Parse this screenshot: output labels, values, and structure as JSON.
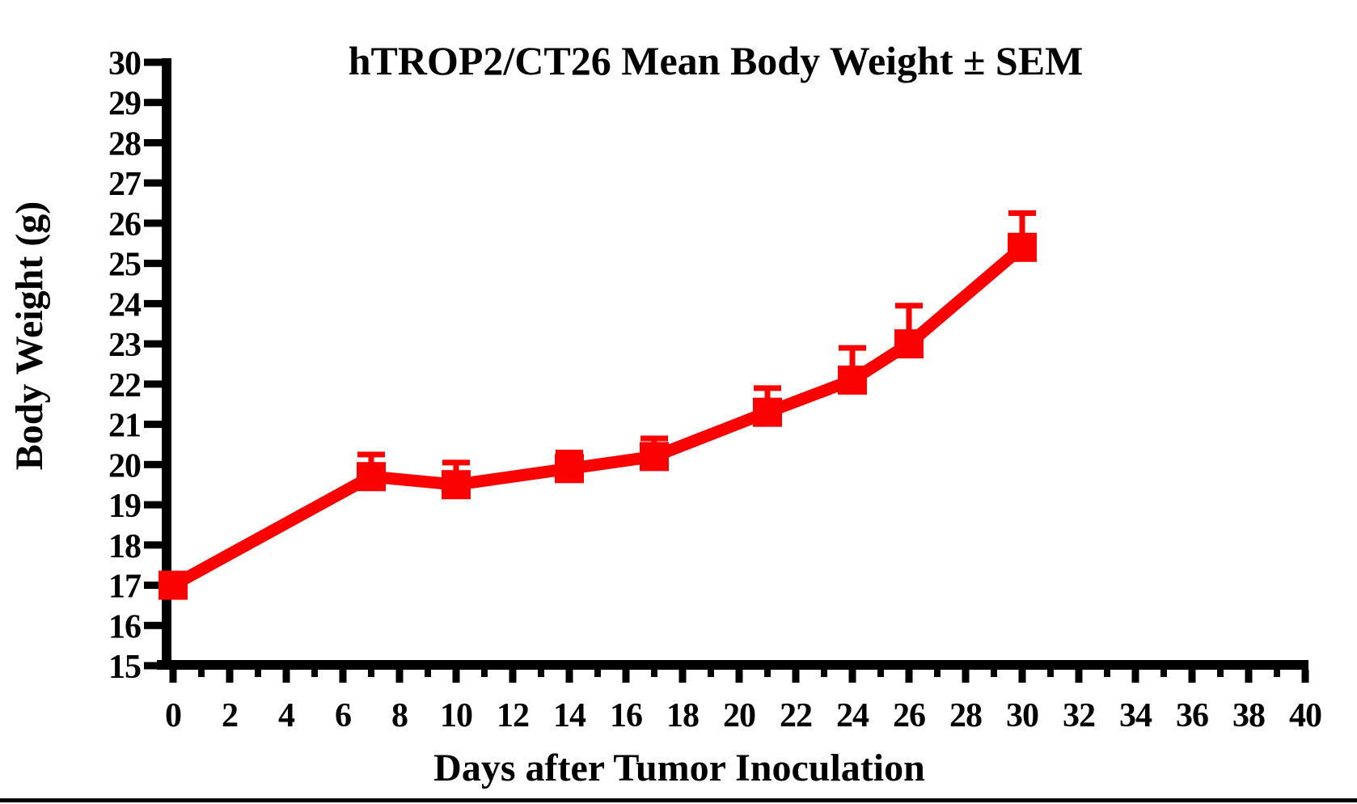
{
  "figure": {
    "background": "#ffffff",
    "footer_rule_color": "#000000",
    "axis_color": "#000000"
  },
  "chart_data": {
    "type": "line",
    "title": "hTROP2/CT26 Mean Body Weight ± SEM",
    "xlabel": "Days after Tumor Inoculation",
    "ylabel": "Body Weight (g)",
    "xlim": [
      0,
      40
    ],
    "ylim": [
      15,
      30
    ],
    "x_major_step": 2,
    "x_minor_step": 1,
    "y_step": 1,
    "grid": false,
    "legend": "none",
    "x_tick_labels": [
      "0",
      "2",
      "4",
      "6",
      "8",
      "10",
      "12",
      "14",
      "16",
      "18",
      "20",
      "22",
      "24",
      "26",
      "28",
      "30",
      "32",
      "34",
      "36",
      "38",
      "40"
    ],
    "y_tick_labels": [
      "15",
      "16",
      "17",
      "18",
      "19",
      "20",
      "21",
      "22",
      "23",
      "24",
      "25",
      "26",
      "27",
      "28",
      "29",
      "30"
    ],
    "series": [
      {
        "name": "hTROP2/CT26",
        "color": "#fa0202",
        "marker": "square",
        "error": "SEM (upper bars only)",
        "x": [
          0,
          7,
          10,
          14,
          17,
          21,
          24,
          26,
          30
        ],
        "y": [
          17.0,
          19.7,
          19.5,
          19.9,
          20.2,
          21.3,
          22.1,
          23.0,
          25.4
        ],
        "sem": [
          0,
          0.55,
          0.55,
          0.4,
          0.45,
          0.6,
          0.8,
          0.95,
          0.85
        ]
      }
    ]
  }
}
